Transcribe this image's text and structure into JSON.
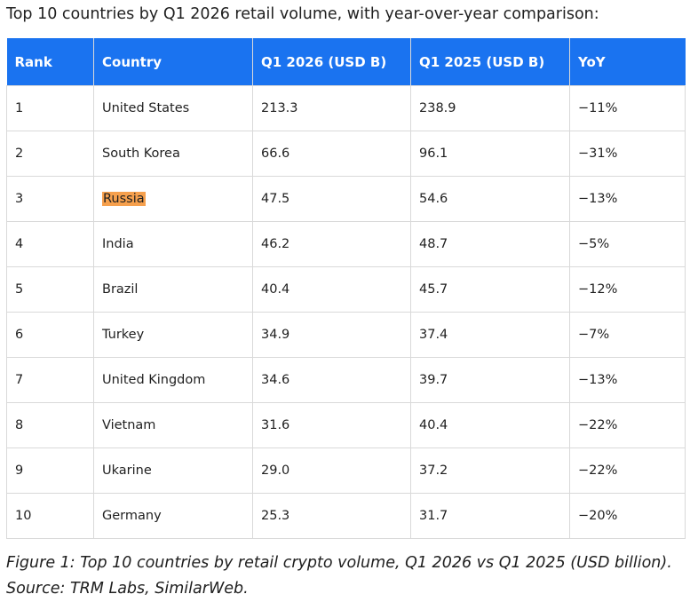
{
  "heading": "Top 10 countries by Q1 2026 retail volume, with year-over-year comparison:",
  "table": {
    "columns": [
      "Rank",
      "Country",
      "Q1 2026 (USD B)",
      "Q1 2025 (USD B)",
      "YoY"
    ],
    "rows": [
      {
        "rank": "1",
        "country": "United States",
        "q1_2026": "213.3",
        "q1_2025": "238.9",
        "yoy": "−11%",
        "highlight": false
      },
      {
        "rank": "2",
        "country": "South Korea",
        "q1_2026": "66.6",
        "q1_2025": "96.1",
        "yoy": "−31%",
        "highlight": false
      },
      {
        "rank": "3",
        "country": "Russia",
        "q1_2026": "47.5",
        "q1_2025": "54.6",
        "yoy": "−13%",
        "highlight": true
      },
      {
        "rank": "4",
        "country": "India",
        "q1_2026": "46.2",
        "q1_2025": "48.7",
        "yoy": "−5%",
        "highlight": false
      },
      {
        "rank": "5",
        "country": "Brazil",
        "q1_2026": "40.4",
        "q1_2025": "45.7",
        "yoy": "−12%",
        "highlight": false
      },
      {
        "rank": "6",
        "country": "Turkey",
        "q1_2026": "34.9",
        "q1_2025": "37.4",
        "yoy": "−7%",
        "highlight": false
      },
      {
        "rank": "7",
        "country": "United Kingdom",
        "q1_2026": "34.6",
        "q1_2025": "39.7",
        "yoy": "−13%",
        "highlight": false
      },
      {
        "rank": "8",
        "country": "Vietnam",
        "q1_2026": "31.6",
        "q1_2025": "40.4",
        "yoy": "−22%",
        "highlight": false
      },
      {
        "rank": "9",
        "country": "Ukarine",
        "q1_2026": "29.0",
        "q1_2025": "37.2",
        "yoy": "−22%",
        "highlight": false
      },
      {
        "rank": "10",
        "country": "Germany",
        "q1_2026": "25.3",
        "q1_2025": "31.7",
        "yoy": "−20%",
        "highlight": false
      }
    ]
  },
  "caption": "Figure 1: Top 10 countries by retail crypto volume, Q1 2026 vs Q1 2025 (USD billion). Source: TRM Labs, SimilarWeb.",
  "colors": {
    "header_bg": "#1a73f0",
    "header_text": "#ffffff",
    "highlight": "#f6a04d",
    "grid": "#d9d9d9"
  }
}
